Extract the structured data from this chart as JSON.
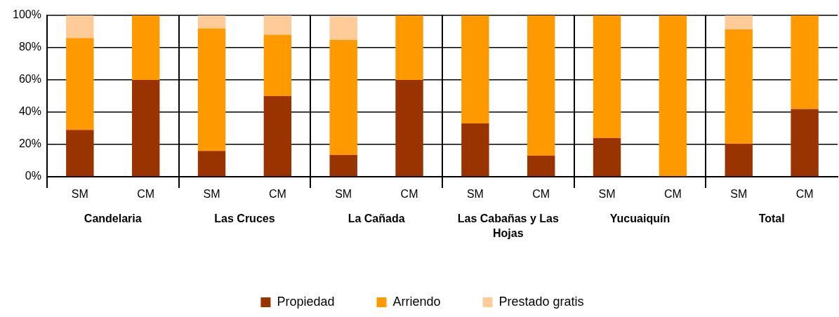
{
  "chart_data": {
    "type": "bar",
    "stacked": true,
    "categories": [
      "SM",
      "CM",
      "SM",
      "CM",
      "SM",
      "CM",
      "SM",
      "CM",
      "SM",
      "CM",
      "SM",
      "CM"
    ],
    "annotations": [
      "Candelaria",
      "Las Cruces",
      "La Cañada",
      "Las Cabañas y Las Hojas",
      "Yucuaiquín",
      "Total"
    ],
    "series": [
      {
        "name": "Propiedad",
        "color": "#993300",
        "values": [
          29,
          60,
          16,
          50,
          13.5,
          60,
          33,
          13,
          24,
          0,
          20.4,
          42
        ]
      },
      {
        "name": "Arriendo",
        "color": "#ff9900",
        "values": [
          57,
          40,
          76,
          38,
          71.3,
          40,
          67,
          87,
          76,
          100,
          70.9,
          58
        ]
      },
      {
        "name": "Prestado gratis",
        "color": "#ffcc99",
        "values": [
          14,
          0,
          8,
          12,
          14.5,
          0,
          0,
          0,
          0,
          0,
          8.7,
          0
        ]
      }
    ],
    "ylim": [
      0,
      100
    ],
    "yticks": [
      {
        "value": 0,
        "label": "0%"
      },
      {
        "value": 20,
        "label": "20%"
      },
      {
        "value": 40,
        "label": "40%"
      },
      {
        "value": 60,
        "label": "60%"
      },
      {
        "value": 80,
        "label": "80%"
      },
      {
        "value": 100,
        "label": "100%"
      }
    ],
    "grid": "y",
    "legend": "bottom"
  }
}
